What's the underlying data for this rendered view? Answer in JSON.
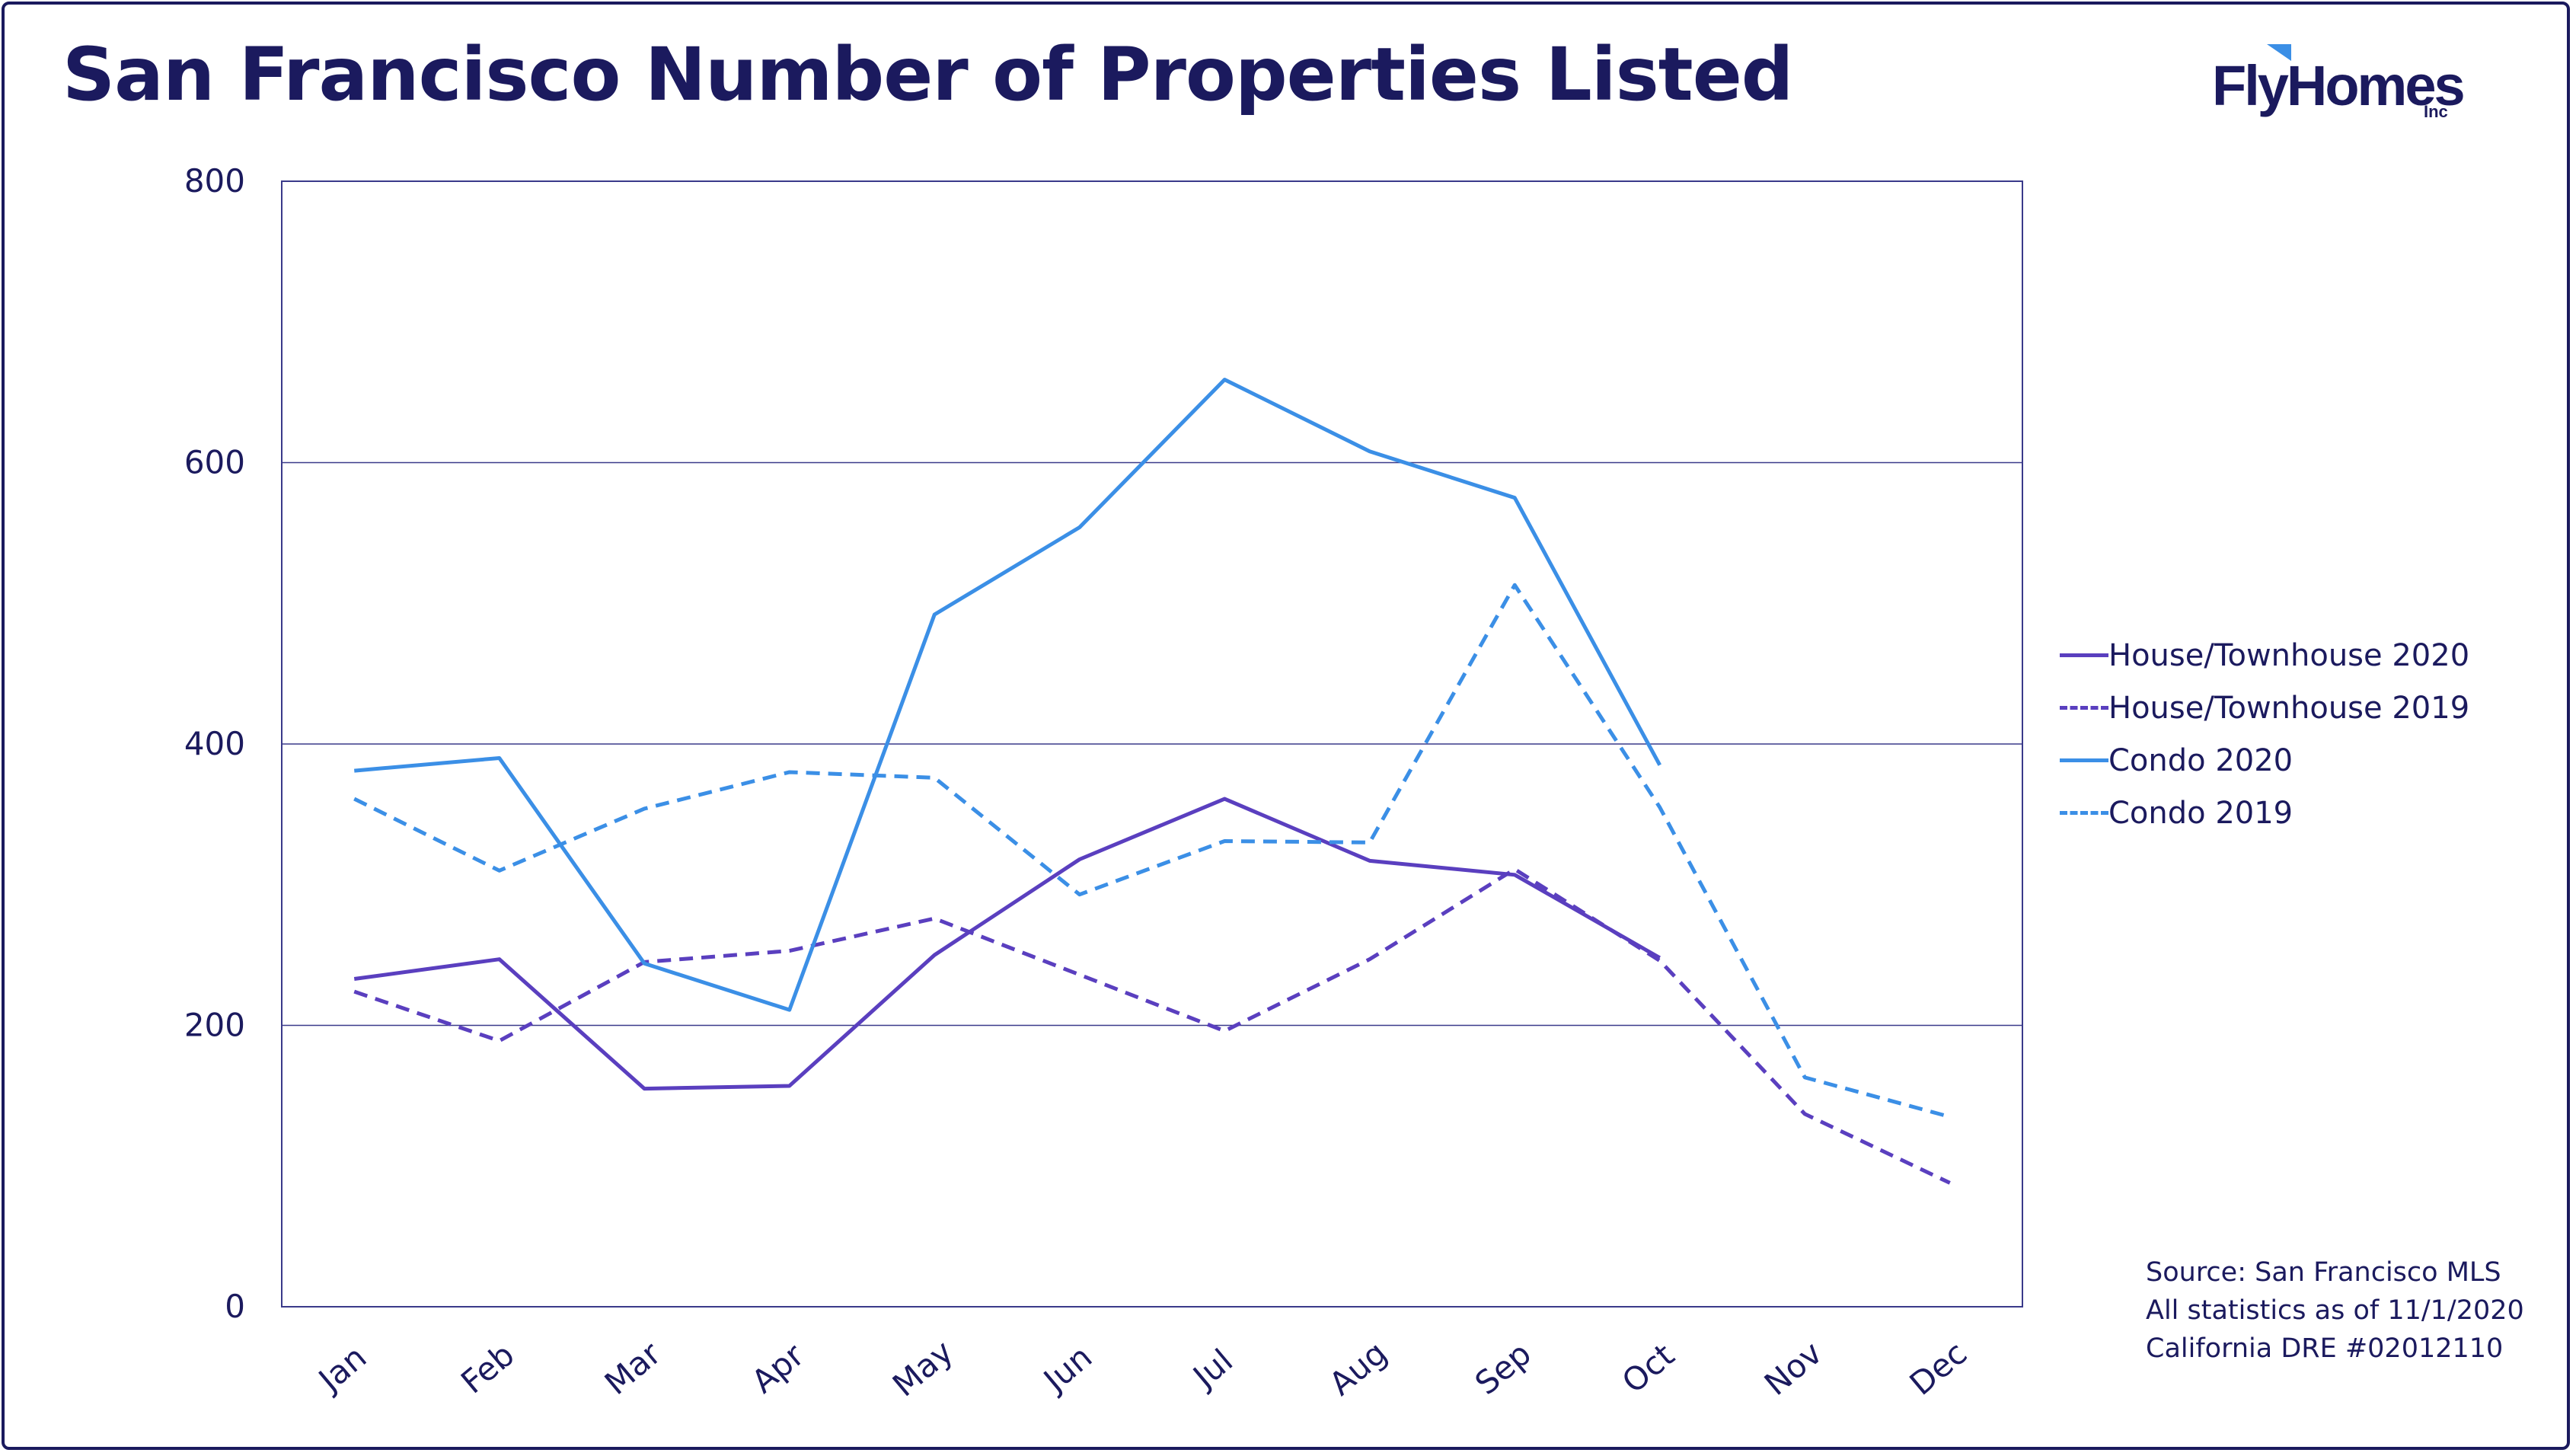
{
  "page": {
    "title": "San Francisco Number of Properties Listed",
    "logo": {
      "text": "FlyHomes",
      "sub": "Inc"
    },
    "source_lines": [
      "Source: San Francisco MLS",
      "All statistics as of 11/1/2020",
      "California DRE #02012110"
    ]
  },
  "colors": {
    "text": "#1b1a5e",
    "house": "#5a3fbf",
    "condo": "#3b8fe6",
    "grid": "#3a3a8a"
  },
  "chart_data": {
    "type": "line",
    "title": "San Francisco Number of Properties Listed",
    "xlabel": "",
    "ylabel": "",
    "categories": [
      "Jan",
      "Feb",
      "Mar",
      "Apr",
      "May",
      "Jun",
      "Jul",
      "Aug",
      "Sep",
      "Oct",
      "Nov",
      "Dec"
    ],
    "ylim": [
      0,
      800
    ],
    "yticks": [
      0,
      200,
      400,
      600,
      800
    ],
    "grid": true,
    "legend_position": "right",
    "series": [
      {
        "name": "House/Townhouse 2020",
        "color": "#5a3fbf",
        "dash": "solid",
        "values": [
          233,
          247,
          155,
          157,
          250,
          318,
          361,
          317,
          307,
          248,
          null,
          null
        ]
      },
      {
        "name": "House/Townhouse 2019",
        "color": "#5a3fbf",
        "dash": "dashed",
        "values": [
          224,
          189,
          245,
          253,
          276,
          236,
          196,
          247,
          311,
          246,
          137,
          88
        ]
      },
      {
        "name": "Condo 2020",
        "color": "#3b8fe6",
        "dash": "solid",
        "values": [
          381,
          390,
          244,
          211,
          492,
          554,
          659,
          608,
          575,
          385,
          null,
          null
        ]
      },
      {
        "name": "Condo 2019",
        "color": "#3b8fe6",
        "dash": "dashed",
        "values": [
          361,
          310,
          354,
          380,
          376,
          293,
          331,
          330,
          513,
          355,
          163,
          135
        ]
      }
    ]
  }
}
